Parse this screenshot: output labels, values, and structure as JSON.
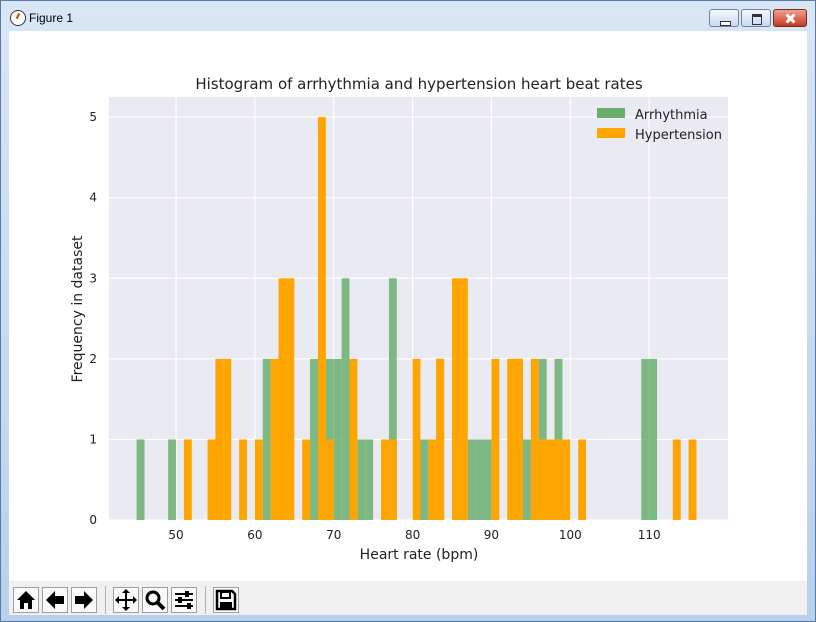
{
  "window": {
    "title": "Figure 1"
  },
  "toolbar": {
    "icons": [
      "home-icon",
      "back-icon",
      "forward-icon",
      "pan-icon",
      "zoom-icon",
      "configure-icon",
      "save-icon"
    ]
  },
  "colors": {
    "arrhythmia": "#6aae6e",
    "hypertension": "#ffa500",
    "plot_bg": "#eaeaf2"
  },
  "chart_data": {
    "type": "bar",
    "title": "Histogram of arrhythmia and hypertension heart beat rates",
    "xlabel": "Heart rate (bpm)",
    "ylabel": "Frequency in dataset",
    "xlim": [
      41.5,
      120
    ],
    "ylim": [
      0,
      5.25
    ],
    "xticks": [
      50,
      60,
      70,
      80,
      90,
      100,
      110
    ],
    "yticks": [
      0,
      1,
      2,
      3,
      4,
      5
    ],
    "grid": true,
    "legend": "top-right",
    "series": [
      {
        "name": "Arrhythmia",
        "bins": [
          [
            45,
            46,
            1
          ],
          [
            49,
            50,
            1
          ],
          [
            61,
            62,
            2
          ],
          [
            67,
            68,
            2
          ],
          [
            69,
            70,
            2
          ],
          [
            70,
            71,
            2
          ],
          [
            71,
            72,
            3
          ],
          [
            73,
            74,
            1
          ],
          [
            74,
            75,
            1
          ],
          [
            77,
            78,
            3
          ],
          [
            81,
            82,
            1
          ],
          [
            83,
            84,
            2
          ],
          [
            85,
            86,
            1
          ],
          [
            87,
            88,
            1
          ],
          [
            88,
            89,
            1
          ],
          [
            89,
            90,
            1
          ],
          [
            93,
            94,
            2
          ],
          [
            94,
            95,
            1
          ],
          [
            96,
            97,
            2
          ],
          [
            98,
            99,
            2
          ],
          [
            109,
            110,
            2
          ],
          [
            110,
            111,
            2
          ]
        ]
      },
      {
        "name": "Hypertension",
        "bins": [
          [
            51,
            52,
            1
          ],
          [
            54,
            55,
            1
          ],
          [
            55,
            56,
            2
          ],
          [
            56,
            57,
            2
          ],
          [
            58,
            59,
            1
          ],
          [
            60,
            61,
            1
          ],
          [
            62,
            63,
            2
          ],
          [
            63,
            64,
            3
          ],
          [
            64,
            65,
            3
          ],
          [
            66,
            67,
            1
          ],
          [
            68,
            69,
            5
          ],
          [
            69,
            70,
            1
          ],
          [
            72,
            73,
            2
          ],
          [
            76,
            77,
            1
          ],
          [
            77,
            78,
            1
          ],
          [
            80,
            81,
            2
          ],
          [
            82,
            83,
            1
          ],
          [
            83,
            84,
            2
          ],
          [
            85,
            86,
            3
          ],
          [
            86,
            87,
            3
          ],
          [
            90,
            91,
            2
          ],
          [
            92,
            93,
            2
          ],
          [
            93,
            94,
            2
          ],
          [
            95,
            96,
            2
          ],
          [
            96,
            97,
            1
          ],
          [
            97,
            98,
            1
          ],
          [
            98,
            99,
            1
          ],
          [
            99,
            100,
            1
          ],
          [
            101,
            102,
            1
          ],
          [
            113,
            114,
            1
          ],
          [
            115,
            116,
            1
          ]
        ]
      }
    ]
  }
}
